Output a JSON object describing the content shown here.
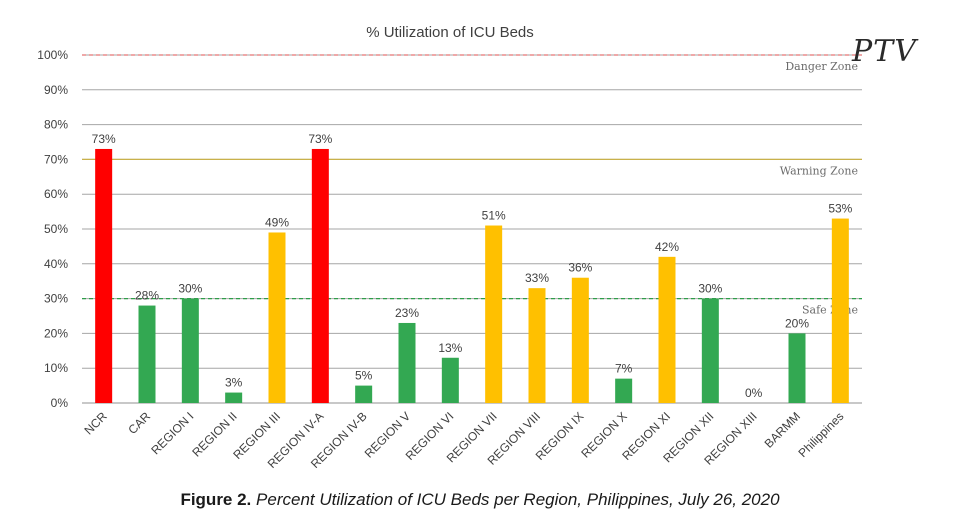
{
  "logo_text": "PTV",
  "caption": {
    "label": "Figure 2.",
    "text": "Percent Utilization of ICU Beds per Region, Philippines, July 26, 2020"
  },
  "chart_data": {
    "type": "bar",
    "title": "% Utilization of ICU Beds",
    "xlabel": "",
    "ylabel": "",
    "ylim": [
      0,
      100
    ],
    "yticks": [
      "0%",
      "10%",
      "20%",
      "30%",
      "40%",
      "50%",
      "60%",
      "70%",
      "80%",
      "90%",
      "100%"
    ],
    "categories": [
      "NCR",
      "CAR",
      "REGION I",
      "REGION II",
      "REGION III",
      "REGION IV-A",
      "REGION IV-B",
      "REGION V",
      "REGION VI",
      "REGION VII",
      "REGION VIII",
      "REGION IX",
      "REGION X",
      "REGION XI",
      "REGION XII",
      "REGION XIII",
      "BARMM",
      "Philippines"
    ],
    "values": [
      73,
      28,
      30,
      3,
      49,
      73,
      5,
      23,
      13,
      51,
      33,
      36,
      7,
      42,
      30,
      0,
      20,
      53
    ],
    "value_labels": [
      "73%",
      "28%",
      "30%",
      "3%",
      "49%",
      "73%",
      "5%",
      "23%",
      "13%",
      "51%",
      "33%",
      "36%",
      "7%",
      "42%",
      "30%",
      "0%",
      "20%",
      "53%"
    ],
    "bar_status": [
      "danger",
      "safe",
      "safe",
      "safe",
      "warning",
      "danger",
      "safe",
      "safe",
      "safe",
      "warning",
      "warning",
      "warning",
      "safe",
      "warning",
      "safe",
      "safe",
      "safe",
      "warning"
    ],
    "colors": {
      "danger": "#ff0000",
      "warning": "#ffc000",
      "safe": "#33a852",
      "grid": "#a6a6a6"
    },
    "reference_lines": [
      {
        "value": 100,
        "label": "Danger Zone",
        "color": "#e57373",
        "style": "dashed"
      },
      {
        "value": 70,
        "label": "Warning Zone",
        "color": "#c9b14a",
        "style": "solid"
      },
      {
        "value": 30,
        "label": "Safe Zone",
        "color": "#2e9e49",
        "style": "dashed"
      }
    ]
  }
}
